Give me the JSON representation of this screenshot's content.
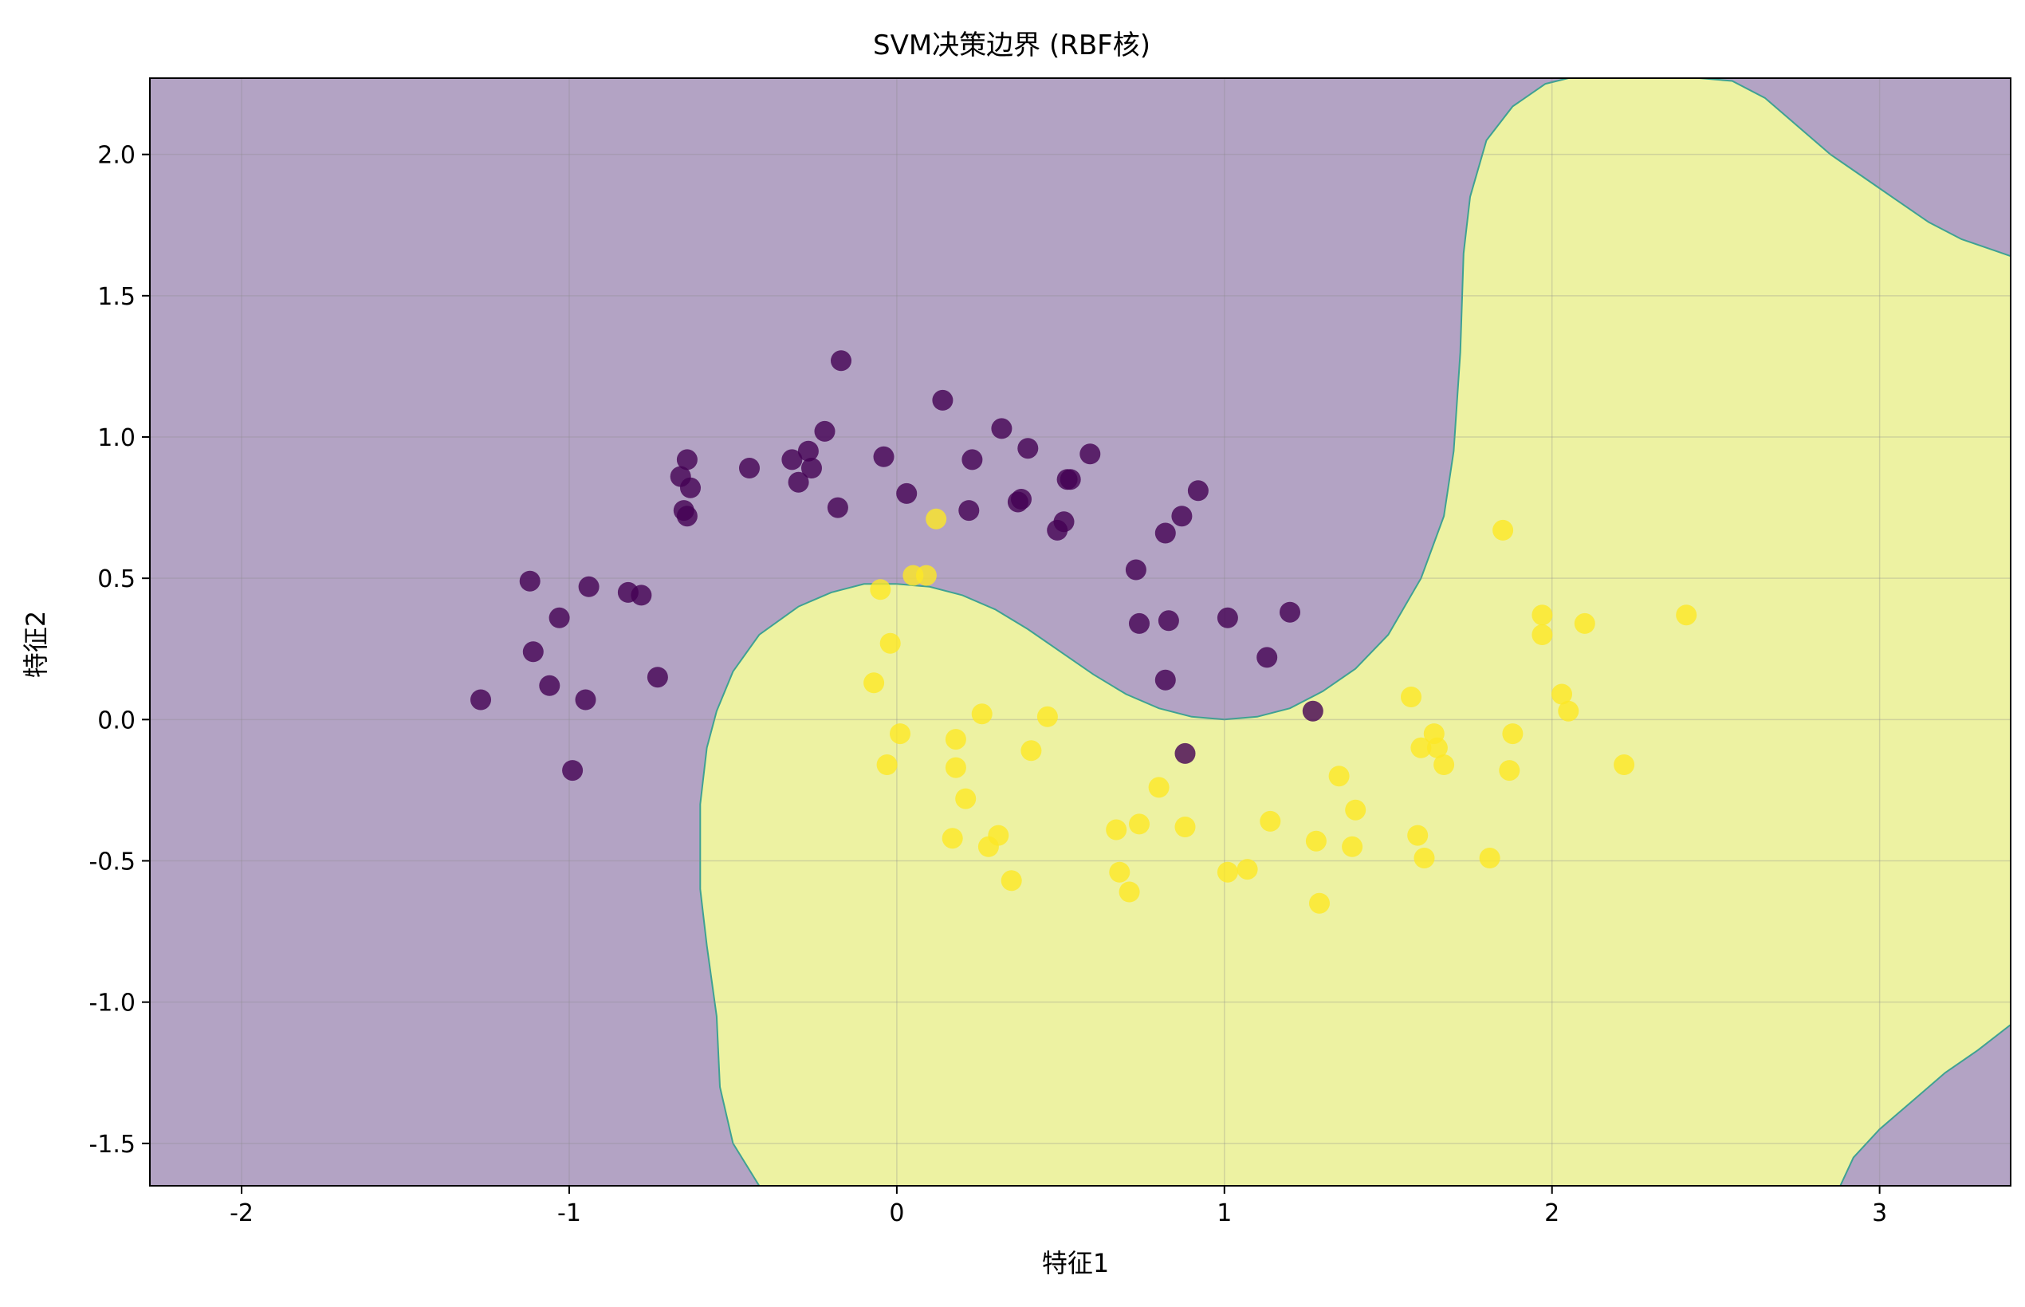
{
  "chart_data": {
    "type": "scatter",
    "title": "SVM决策边界 (RBF核)",
    "xlabel": "特征1",
    "ylabel": "特征2",
    "xlim": [
      -2.28,
      3.4
    ],
    "ylim": [
      -1.65,
      2.27
    ],
    "x_ticks": [
      -2,
      -1,
      0,
      1,
      2,
      3
    ],
    "x_tick_labels": [
      "-2",
      "-1",
      "0",
      "1",
      "2",
      "3"
    ],
    "y_ticks": [
      -1.5,
      -1.0,
      -0.5,
      0.0,
      0.5,
      1.0,
      1.5,
      2.0
    ],
    "y_tick_labels": [
      "-1.5",
      "-1.0",
      "-0.5",
      "0.0",
      "0.5",
      "1.0",
      "1.5",
      "2.0"
    ],
    "grid": true,
    "regions": [
      {
        "class": 0,
        "color": "#b3a3c4"
      },
      {
        "class": 1,
        "color": "#edf2a2"
      }
    ],
    "boundary_color": "#3fa193",
    "boundary_curve": [
      [
        2.45,
        2.27
      ],
      [
        2.55,
        2.26
      ],
      [
        2.65,
        2.2
      ],
      [
        2.75,
        2.1
      ],
      [
        2.85,
        2.0
      ],
      [
        2.95,
        1.92
      ],
      [
        3.05,
        1.84
      ],
      [
        3.15,
        1.76
      ],
      [
        3.25,
        1.7
      ],
      [
        3.35,
        1.66
      ],
      [
        3.4,
        1.64
      ],
      [
        3.4,
        -1.08
      ],
      [
        3.3,
        -1.17
      ],
      [
        3.2,
        -1.25
      ],
      [
        3.1,
        -1.35
      ],
      [
        3.0,
        -1.45
      ],
      [
        2.92,
        -1.55
      ],
      [
        2.88,
        -1.65
      ],
      [
        0.43,
        -1.65
      ],
      [
        0.2,
        -1.65
      ],
      [
        -0.42,
        -1.65
      ],
      [
        -0.5,
        -1.5
      ],
      [
        -0.54,
        -1.3
      ],
      [
        -0.55,
        -1.05
      ],
      [
        -0.58,
        -0.8
      ],
      [
        -0.6,
        -0.6
      ],
      [
        -0.6,
        -0.3
      ],
      [
        -0.58,
        -0.1
      ],
      [
        -0.55,
        0.03
      ],
      [
        -0.5,
        0.17
      ],
      [
        -0.42,
        0.3
      ],
      [
        -0.3,
        0.4
      ],
      [
        -0.2,
        0.45
      ],
      [
        -0.1,
        0.48
      ],
      [
        0.0,
        0.48
      ],
      [
        0.1,
        0.47
      ],
      [
        0.2,
        0.44
      ],
      [
        0.3,
        0.39
      ],
      [
        0.4,
        0.32
      ],
      [
        0.5,
        0.24
      ],
      [
        0.6,
        0.16
      ],
      [
        0.7,
        0.09
      ],
      [
        0.8,
        0.04
      ],
      [
        0.9,
        0.01
      ],
      [
        1.0,
        0.0
      ],
      [
        1.1,
        0.01
      ],
      [
        1.2,
        0.04
      ],
      [
        1.3,
        0.1
      ],
      [
        1.4,
        0.18
      ],
      [
        1.5,
        0.3
      ],
      [
        1.6,
        0.5
      ],
      [
        1.67,
        0.72
      ],
      [
        1.7,
        0.95
      ],
      [
        1.72,
        1.3
      ],
      [
        1.73,
        1.65
      ],
      [
        1.75,
        1.85
      ],
      [
        1.8,
        2.05
      ],
      [
        1.88,
        2.17
      ],
      [
        1.98,
        2.25
      ],
      [
        2.05,
        2.27
      ]
    ],
    "series": [
      {
        "class": 0,
        "color": "#440154",
        "points": [
          [
            -1.27,
            0.07
          ],
          [
            -1.12,
            0.49
          ],
          [
            -1.11,
            0.24
          ],
          [
            -1.06,
            0.12
          ],
          [
            -1.03,
            0.36
          ],
          [
            -0.99,
            -0.18
          ],
          [
            -0.95,
            0.07
          ],
          [
            -0.94,
            0.47
          ],
          [
            -0.82,
            0.45
          ],
          [
            -0.78,
            0.44
          ],
          [
            -0.73,
            0.15
          ],
          [
            -0.66,
            0.86
          ],
          [
            -0.65,
            0.74
          ],
          [
            -0.64,
            0.92
          ],
          [
            -0.64,
            0.72
          ],
          [
            -0.63,
            0.82
          ],
          [
            -0.45,
            0.89
          ],
          [
            -0.32,
            0.92
          ],
          [
            -0.3,
            0.84
          ],
          [
            -0.27,
            0.95
          ],
          [
            -0.26,
            0.89
          ],
          [
            -0.22,
            1.02
          ],
          [
            -0.18,
            0.75
          ],
          [
            -0.17,
            1.27
          ],
          [
            -0.04,
            0.93
          ],
          [
            0.03,
            0.8
          ],
          [
            0.14,
            1.13
          ],
          [
            0.22,
            0.74
          ],
          [
            0.23,
            0.92
          ],
          [
            0.32,
            1.03
          ],
          [
            0.37,
            0.77
          ],
          [
            0.38,
            0.78
          ],
          [
            0.4,
            0.96
          ],
          [
            0.49,
            0.67
          ],
          [
            0.51,
            0.7
          ],
          [
            0.52,
            0.85
          ],
          [
            0.53,
            0.85
          ],
          [
            0.59,
            0.94
          ],
          [
            0.73,
            0.53
          ],
          [
            0.74,
            0.34
          ],
          [
            0.82,
            0.66
          ],
          [
            0.83,
            0.35
          ],
          [
            0.87,
            0.72
          ],
          [
            0.82,
            0.14
          ],
          [
            0.88,
            -0.12
          ],
          [
            0.92,
            0.81
          ],
          [
            1.01,
            0.36
          ],
          [
            1.13,
            0.22
          ],
          [
            1.2,
            0.38
          ],
          [
            1.27,
            0.03
          ]
        ]
      },
      {
        "class": 1,
        "color": "#fde725",
        "points": [
          [
            -0.07,
            0.13
          ],
          [
            -0.05,
            0.46
          ],
          [
            -0.03,
            -0.16
          ],
          [
            -0.02,
            0.27
          ],
          [
            0.01,
            -0.05
          ],
          [
            0.05,
            0.51
          ],
          [
            0.09,
            0.51
          ],
          [
            0.12,
            0.71
          ],
          [
            0.17,
            -0.42
          ],
          [
            0.18,
            -0.17
          ],
          [
            0.18,
            -0.07
          ],
          [
            0.21,
            -0.28
          ],
          [
            0.26,
            0.02
          ],
          [
            0.28,
            -0.45
          ],
          [
            0.31,
            -0.41
          ],
          [
            0.35,
            -0.57
          ],
          [
            0.41,
            -0.11
          ],
          [
            0.46,
            0.01
          ],
          [
            0.67,
            -0.39
          ],
          [
            0.68,
            -0.54
          ],
          [
            0.71,
            -0.61
          ],
          [
            0.74,
            -0.37
          ],
          [
            0.8,
            -0.24
          ],
          [
            0.88,
            -0.38
          ],
          [
            1.01,
            -0.54
          ],
          [
            1.07,
            -0.53
          ],
          [
            1.14,
            -0.36
          ],
          [
            1.28,
            -0.43
          ],
          [
            1.29,
            -0.65
          ],
          [
            1.35,
            -0.2
          ],
          [
            1.39,
            -0.45
          ],
          [
            1.4,
            -0.32
          ],
          [
            1.57,
            0.08
          ],
          [
            1.59,
            -0.41
          ],
          [
            1.6,
            -0.1
          ],
          [
            1.61,
            -0.49
          ],
          [
            1.64,
            -0.05
          ],
          [
            1.65,
            -0.1
          ],
          [
            1.67,
            -0.16
          ],
          [
            1.81,
            -0.49
          ],
          [
            1.85,
            0.67
          ],
          [
            1.87,
            -0.18
          ],
          [
            1.88,
            -0.05
          ],
          [
            1.97,
            0.37
          ],
          [
            1.97,
            0.3
          ],
          [
            2.03,
            0.09
          ],
          [
            2.05,
            0.03
          ],
          [
            2.1,
            0.34
          ],
          [
            2.22,
            -0.16
          ],
          [
            2.41,
            0.37
          ]
        ]
      }
    ]
  }
}
